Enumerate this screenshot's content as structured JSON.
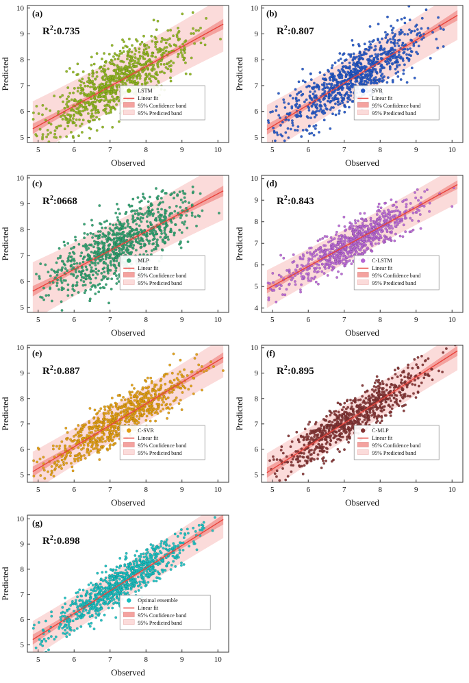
{
  "figure": {
    "background": "#ffffff",
    "xlabel": "Observed",
    "ylabel": "Predicted"
  },
  "styles": {
    "fit_color": "#E8433C",
    "conf_band_color": "#F4A29F",
    "pred_band_color": "#FBDBDA",
    "axis_color": "#333333",
    "legend_border": "#999999"
  },
  "chart_data": [
    {
      "type": "scatter",
      "panel_label": "(a)",
      "r2": {
        "prefix": "R",
        "sup": "2",
        "rest": ":0.735"
      },
      "series_name": "LSTM",
      "color": "#8CB31D",
      "xlabel": "Observed",
      "ylabel": "Predicted",
      "xlim": [
        4.7,
        10.3
      ],
      "ylim": [
        4.8,
        10.1
      ],
      "xticks": [
        5,
        6,
        7,
        8,
        9,
        10
      ],
      "yticks": [
        5,
        6,
        7,
        8,
        9,
        10
      ],
      "fit": {
        "x": [
          4.85,
          10.15
        ],
        "y": [
          5.33,
          9.38
        ]
      },
      "n_points": 900,
      "noise": 0.6,
      "pred_band_halfwidth": 0.95,
      "conf_band_halfwidth": 0.08,
      "legend_items": [
        "LSTM",
        "Linear fit",
        "95% Confidence band",
        "95% Predicted band"
      ],
      "seed": 11
    },
    {
      "type": "scatter",
      "panel_label": "(b)",
      "r2": {
        "prefix": "R",
        "sup": "2",
        "rest": ":0.807"
      },
      "series_name": "SVR",
      "color": "#2457C5",
      "xlabel": "Observed",
      "ylabel": "Predicted",
      "xlim": [
        4.7,
        10.3
      ],
      "ylim": [
        4.8,
        10.1
      ],
      "xticks": [
        5,
        6,
        7,
        8,
        9,
        10
      ],
      "yticks": [
        5,
        6,
        7,
        8,
        9,
        10
      ],
      "fit": {
        "x": [
          4.85,
          10.15
        ],
        "y": [
          5.3,
          9.72
        ]
      },
      "n_points": 900,
      "noise": 0.52,
      "pred_band_halfwidth": 0.85,
      "conf_band_halfwidth": 0.08,
      "legend_items": [
        "SVR",
        "Linear fit",
        "95% Confidence band",
        "95% Predicted band"
      ],
      "seed": 22
    },
    {
      "type": "scatter",
      "panel_label": "(c)",
      "r2": {
        "prefix": "R",
        "sup": "2",
        "rest": ":0668"
      },
      "series_name": "MLP",
      "color": "#2E9E6E",
      "xlabel": "Observed",
      "ylabel": "Predicted",
      "xlim": [
        4.7,
        10.3
      ],
      "ylim": [
        4.8,
        10.1
      ],
      "xticks": [
        5,
        6,
        7,
        8,
        9,
        10
      ],
      "yticks": [
        5,
        6,
        7,
        8,
        9,
        10
      ],
      "fit": {
        "x": [
          4.85,
          10.15
        ],
        "y": [
          5.62,
          9.5
        ]
      },
      "n_points": 900,
      "noise": 0.63,
      "pred_band_halfwidth": 1.0,
      "conf_band_halfwidth": 0.08,
      "legend_items": [
        "MLP",
        "Linear fit",
        "95% Confidence band",
        "95% Predicted band"
      ],
      "seed": 33
    },
    {
      "type": "scatter",
      "panel_label": "(d)",
      "r2": {
        "prefix": "R",
        "sup": "2",
        "rest": ":0.843"
      },
      "series_name": "C-LSTM",
      "color": "#B666D2",
      "xlabel": "Observed",
      "ylabel": "Predicted",
      "xlim": [
        4.7,
        10.3
      ],
      "ylim": [
        3.8,
        10.15
      ],
      "xticks": [
        5,
        6,
        7,
        8,
        9,
        10
      ],
      "yticks": [
        4,
        5,
        6,
        7,
        8,
        9,
        10
      ],
      "fit": {
        "x": [
          4.85,
          10.15
        ],
        "y": [
          4.88,
          9.72
        ]
      },
      "n_points": 800,
      "noise": 0.46,
      "pred_band_halfwidth": 0.78,
      "conf_band_halfwidth": 0.08,
      "legend_items": [
        "C-LSTM",
        "Linear fit",
        "95% Confidence band",
        "95% Predicted band"
      ],
      "seed": 44
    },
    {
      "type": "scatter",
      "panel_label": "(e)",
      "r2": {
        "prefix": "R",
        "sup": "2",
        "rest": ":0.887"
      },
      "series_name": "C-SVR",
      "color": "#E09C10",
      "xlabel": "Observed",
      "ylabel": "Predicted",
      "xlim": [
        4.7,
        10.3
      ],
      "ylim": [
        4.7,
        10.1
      ],
      "xticks": [
        5,
        6,
        7,
        8,
        9,
        10
      ],
      "yticks": [
        5,
        6,
        7,
        8,
        9,
        10
      ],
      "fit": {
        "x": [
          4.85,
          10.15
        ],
        "y": [
          5.12,
          9.62
        ]
      },
      "n_points": 800,
      "noise": 0.43,
      "pred_band_halfwidth": 0.7,
      "conf_band_halfwidth": 0.08,
      "legend_items": [
        "C-SVR",
        "Linear fit",
        "95% Confidence band",
        "95% Predicted band"
      ],
      "seed": 55
    },
    {
      "type": "scatter",
      "panel_label": "(f)",
      "r2": {
        "prefix": "R",
        "sup": "2",
        "rest": ":0.895"
      },
      "series_name": "C-MLP",
      "color": "#833434",
      "xlabel": "Observed",
      "ylabel": "Predicted",
      "xlim": [
        4.7,
        10.3
      ],
      "ylim": [
        4.7,
        10.1
      ],
      "xticks": [
        5,
        6,
        7,
        8,
        9,
        10
      ],
      "yticks": [
        5,
        6,
        7,
        8,
        9,
        10
      ],
      "fit": {
        "x": [
          4.85,
          10.15
        ],
        "y": [
          5.08,
          9.88
        ]
      },
      "n_points": 800,
      "noise": 0.4,
      "pred_band_halfwidth": 0.68,
      "conf_band_halfwidth": 0.08,
      "legend_items": [
        "C-MLP",
        "Linear fit",
        "95% Confidence band",
        "95% Predicted band"
      ],
      "seed": 66
    },
    {
      "type": "scatter",
      "panel_label": "(g)",
      "r2": {
        "prefix": "R",
        "sup": "2",
        "rest": ":0.898"
      },
      "series_name": "Optimal ensemble",
      "color": "#18BDBE",
      "xlabel": "Observed",
      "ylabel": "Predicted",
      "xlim": [
        4.7,
        10.3
      ],
      "ylim": [
        4.7,
        10.15
      ],
      "xticks": [
        5,
        6,
        7,
        8,
        9,
        10
      ],
      "yticks": [
        5,
        6,
        7,
        8,
        9,
        10
      ],
      "fit": {
        "x": [
          4.85,
          10.15
        ],
        "y": [
          5.2,
          9.98
        ]
      },
      "n_points": 850,
      "noise": 0.39,
      "pred_band_halfwidth": 0.66,
      "conf_band_halfwidth": 0.08,
      "legend_items": [
        "Optimal ensemble",
        "Linear fit",
        "95% Confidence band",
        "95% Predicted band"
      ],
      "seed": 77
    }
  ]
}
